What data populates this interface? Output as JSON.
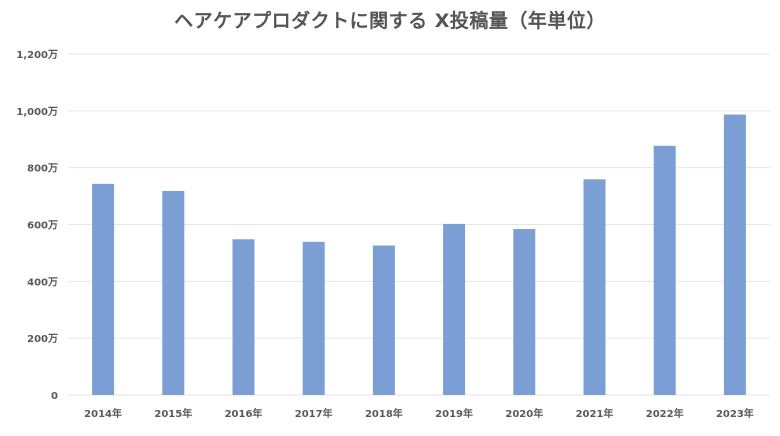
{
  "chart_data": {
    "type": "bar",
    "title": "ヘアケアプロダクトに関する X投稿量（年単位）",
    "xlabel": "",
    "ylabel": "",
    "categories": [
      "2014年",
      "2015年",
      "2016年",
      "2017年",
      "2018年",
      "2019年",
      "2020年",
      "2021年",
      "2022年",
      "2023年"
    ],
    "values": [
      7430000,
      7180000,
      5480000,
      5390000,
      5260000,
      6020000,
      5840000,
      7590000,
      8770000,
      9870000
    ],
    "ylim": [
      0,
      12000000
    ],
    "yticks": [
      0,
      2000000,
      4000000,
      6000000,
      8000000,
      10000000,
      12000000
    ],
    "ytick_labels": [
      "0",
      "200万",
      "400万",
      "600万",
      "800万",
      "1,000万",
      "1,200万"
    ],
    "grid": true,
    "legend": "none",
    "bar_color": "#7b9fd4",
    "grid_color": "#e6e6e6"
  }
}
